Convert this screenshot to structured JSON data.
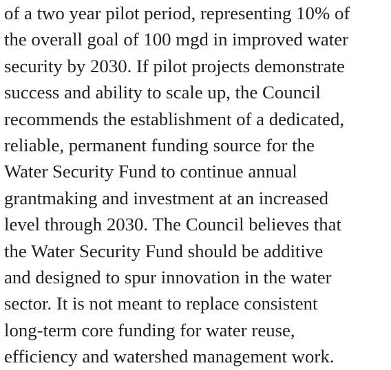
{
  "paragraph": {
    "lines": [
      "of a two year pilot period, representing 10% of",
      "the overall goal of 100 mgd in improved water",
      "security by 2030. If pilot projects demonstrate",
      "success and ability to scale up, the Council",
      "recommends the establishment of a dedicated,",
      "reliable, permanent funding source for the",
      "Water Security Fund to continue annual",
      "grantmaking and investment at an increased",
      "level through 2030. The Council believes that",
      "the Water Security Fund should be additive",
      "and designed to spur innovation in the water",
      "sector. It is not meant to replace consistent",
      "long-term core funding for water reuse,",
      "efficiency and watershed management work."
    ]
  }
}
